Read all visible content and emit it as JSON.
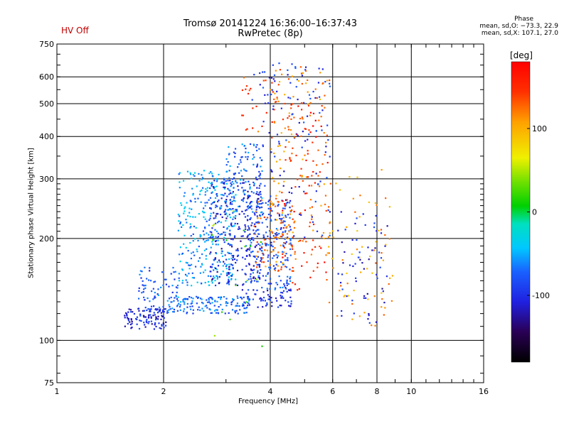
{
  "header": {
    "status": "HV Off",
    "title_line1": "Tromsø 20141224 16:36:00–16:37:43",
    "title_line2": "RwPretec (8p)",
    "phase_title": "Phase",
    "phase_o": "mean, sd,O: −73.3, 22.9",
    "phase_x": "mean, sd,X: 107.1, 27.0"
  },
  "colors": {
    "status": "#c00000",
    "grid": "#000000",
    "background": "#ffffff"
  },
  "chart_data": {
    "type": "scatter",
    "title": "Tromsø 20141224 16:36:00–16:37:43",
    "subtitle": "RwPretec (8p)",
    "xlabel": "Frequency [MHz]",
    "ylabel": "Stationary phase Virtual Height [km]",
    "x_scale": "log",
    "y_scale": "log",
    "xlim": [
      1,
      16
    ],
    "ylim": [
      75,
      750
    ],
    "x_ticks": [
      1,
      2,
      4,
      6,
      8,
      10,
      16
    ],
    "y_ticks": [
      75,
      100,
      200,
      300,
      400,
      500,
      600,
      750
    ],
    "grid": true,
    "colorbar": {
      "label": "[deg]",
      "ticks": [
        100,
        0,
        -100
      ],
      "range": [
        -180,
        180
      ]
    },
    "clusters": [
      {
        "x_range": [
          1.55,
          2.05
        ],
        "y_range": [
          108,
          125
        ],
        "phase": -105,
        "count": 110
      },
      {
        "x_range": [
          1.7,
          2.2
        ],
        "y_range": [
          118,
          165
        ],
        "phase": -80,
        "count": 75
      },
      {
        "x_range": [
          2.05,
          3.5
        ],
        "y_range": [
          120,
          135
        ],
        "phase": -70,
        "count": 150
      },
      {
        "x_range": [
          3.3,
          4.6
        ],
        "y_range": [
          125,
          142
        ],
        "phase": -95,
        "count": 60
      },
      {
        "x_range": [
          2.2,
          3.2
        ],
        "y_range": [
          145,
          320
        ],
        "phase": -55,
        "count": 320
      },
      {
        "x_range": [
          2.7,
          3.8
        ],
        "y_range": [
          145,
          300
        ],
        "phase": -105,
        "count": 260
      },
      {
        "x_range": [
          3.0,
          3.8
        ],
        "y_range": [
          230,
          380
        ],
        "phase": -70,
        "count": 120
      },
      {
        "x_range": [
          3.4,
          4.6
        ],
        "y_range": [
          140,
          260
        ],
        "phase": -85,
        "count": 200
      },
      {
        "x_range": [
          3.6,
          4.7
        ],
        "y_range": [
          160,
          260
        ],
        "phase": 125,
        "count": 75
      },
      {
        "x_range": [
          3.5,
          5.9
        ],
        "y_range": [
          190,
          660
        ],
        "phase": -95,
        "count": 150
      },
      {
        "x_range": [
          4.0,
          5.9
        ],
        "y_range": [
          170,
          650
        ],
        "phase": 120,
        "count": 150
      },
      {
        "x_range": [
          4.3,
          5.9
        ],
        "y_range": [
          140,
          520
        ],
        "phase": 155,
        "count": 80
      },
      {
        "x_range": [
          5.8,
          8.9
        ],
        "y_range": [
          110,
          320
        ],
        "phase": 110,
        "count": 70
      },
      {
        "x_range": [
          6.2,
          8.6
        ],
        "y_range": [
          110,
          240
        ],
        "phase": -105,
        "count": 60
      },
      {
        "x_range": [
          3.3,
          4.2
        ],
        "y_range": [
          410,
          620
        ],
        "phase": 140,
        "count": 25
      },
      {
        "x_range": [
          2.7,
          3.9
        ],
        "y_range": [
          90,
          250
        ],
        "phase": 30,
        "count": 18
      }
    ]
  }
}
